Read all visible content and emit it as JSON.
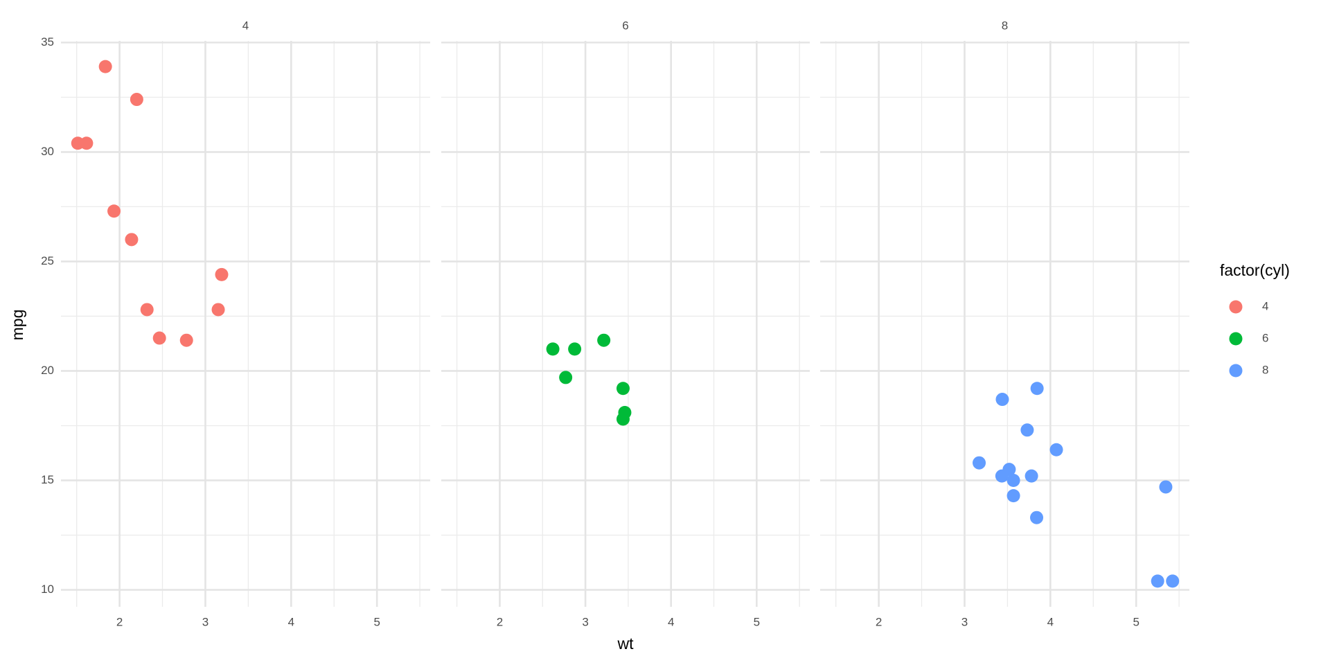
{
  "chart_data": [
    {
      "type": "scatter",
      "title": "4",
      "xlabel": "wt",
      "ylabel": "mpg",
      "legend_title": "factor(cyl)",
      "xlim": [
        1.317,
        5.62
      ],
      "ylim": [
        9.225,
        35.075
      ],
      "xticks": [
        2,
        3,
        4,
        5
      ],
      "yticks": [
        10,
        15,
        20,
        25,
        30,
        35
      ],
      "xminor": [
        1.5,
        2.5,
        3.5,
        4.5,
        5.5
      ],
      "yminor": [
        12.5,
        17.5,
        22.5,
        27.5,
        32.5
      ],
      "grid": true,
      "series": [
        {
          "name": "4",
          "color": "#F8766D",
          "x": [
            2.32,
            3.19,
            3.15,
            2.2,
            1.615,
            1.835,
            2.465,
            1.935,
            2.14,
            1.513,
            2.78
          ],
          "values": [
            22.8,
            24.4,
            22.8,
            32.4,
            30.4,
            33.9,
            21.5,
            27.3,
            26.0,
            30.4,
            21.4
          ]
        }
      ]
    },
    {
      "type": "scatter",
      "title": "6",
      "xlim": [
        1.317,
        5.62
      ],
      "ylim": [
        9.225,
        35.075
      ],
      "xticks": [
        2,
        3,
        4,
        5
      ],
      "yticks": [
        10,
        15,
        20,
        25,
        30,
        35
      ],
      "xminor": [
        1.5,
        2.5,
        3.5,
        4.5,
        5.5
      ],
      "yminor": [
        12.5,
        17.5,
        22.5,
        27.5,
        32.5
      ],
      "grid": true,
      "series": [
        {
          "name": "6",
          "color": "#00BA38",
          "x": [
            2.62,
            2.875,
            3.215,
            3.46,
            3.44,
            3.44,
            2.77
          ],
          "values": [
            21.0,
            21.0,
            21.4,
            18.1,
            19.2,
            17.8,
            19.7
          ]
        }
      ]
    },
    {
      "type": "scatter",
      "title": "8",
      "xlim": [
        1.317,
        5.62
      ],
      "ylim": [
        9.225,
        35.075
      ],
      "xticks": [
        2,
        3,
        4,
        5
      ],
      "yticks": [
        10,
        15,
        20,
        25,
        30,
        35
      ],
      "xminor": [
        1.5,
        2.5,
        3.5,
        4.5,
        5.5
      ],
      "yminor": [
        12.5,
        17.5,
        22.5,
        27.5,
        32.5
      ],
      "grid": true,
      "series": [
        {
          "name": "8",
          "color": "#619CFF",
          "x": [
            3.44,
            3.57,
            4.07,
            3.73,
            3.78,
            5.25,
            5.424,
            5.345,
            3.52,
            3.435,
            3.84,
            3.845,
            3.17,
            3.57
          ],
          "values": [
            18.7,
            14.3,
            16.4,
            17.3,
            15.2,
            10.4,
            10.4,
            14.7,
            15.5,
            15.2,
            13.3,
            19.2,
            15.8,
            15.0
          ]
        }
      ]
    }
  ]
}
